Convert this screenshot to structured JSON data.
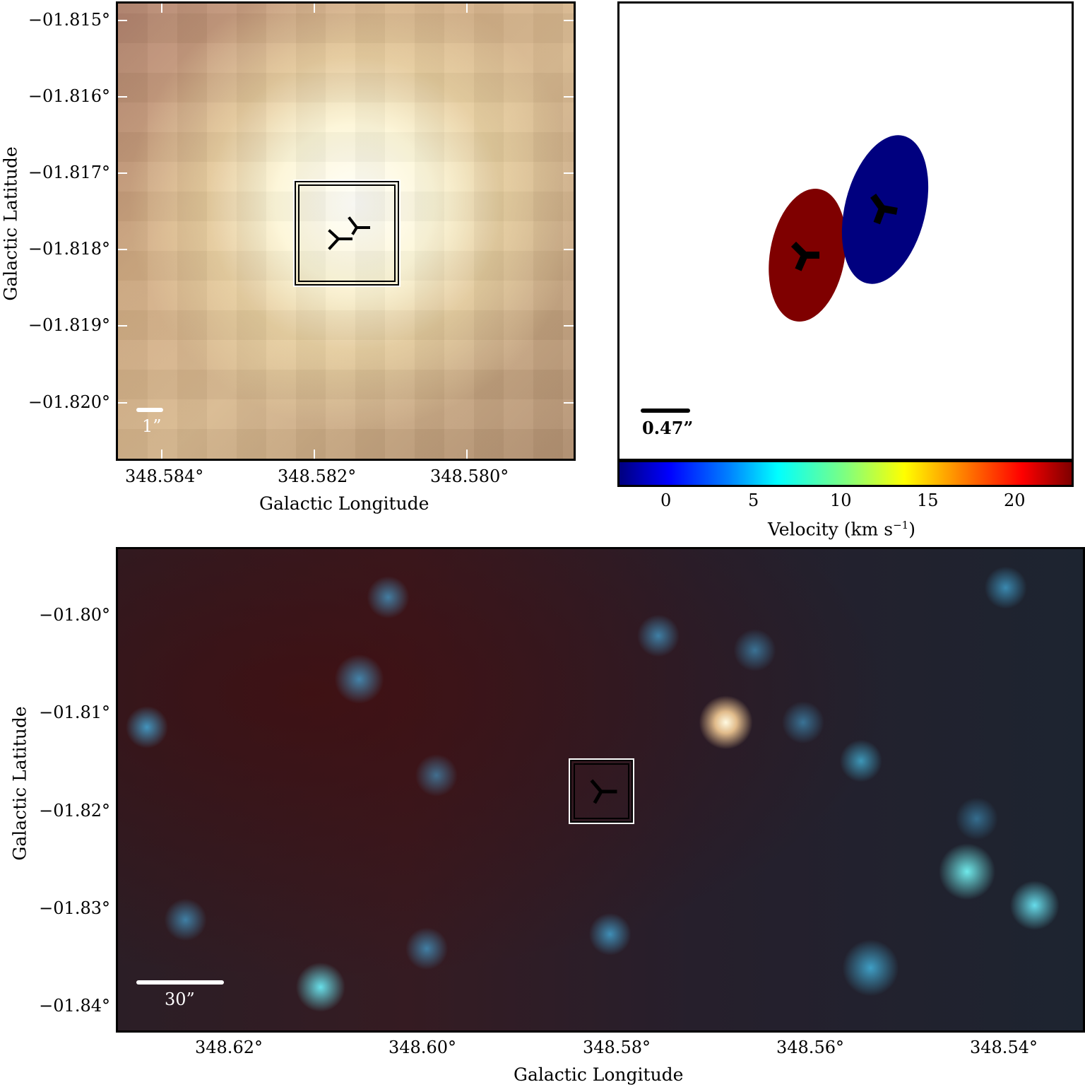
{
  "top_left_panel": {
    "y_ticks": [
      "−01.815°",
      "−01.816°",
      "−01.817°",
      "−01.818°",
      "−01.819°",
      "−01.820°"
    ],
    "x_ticks": [
      "348.584°",
      "348.582°",
      "348.580°"
    ],
    "x_title": "Galactic Longitude",
    "y_title": "Galactic Latitude",
    "scale_label": "1”"
  },
  "top_right_panel": {
    "scale_label": "0.47”",
    "colorbar": {
      "ticks": [
        "0",
        "5",
        "10",
        "15",
        "20"
      ],
      "title_prefix": "Velocity (km s",
      "title_sup": "−1",
      "title_suffix": ")"
    },
    "ellipse_colors": {
      "red": "#7f0000",
      "blue": "#00007f"
    }
  },
  "bottom_panel": {
    "y_ticks": [
      "−01.80°",
      "−01.81°",
      "−01.82°",
      "−01.83°",
      "−01.84°"
    ],
    "x_ticks": [
      "348.62°",
      "348.60°",
      "348.58°",
      "348.56°",
      "348.54°"
    ],
    "x_title": "Galactic Longitude",
    "y_title": "Galactic Latitude",
    "scale_label": "30”"
  }
}
